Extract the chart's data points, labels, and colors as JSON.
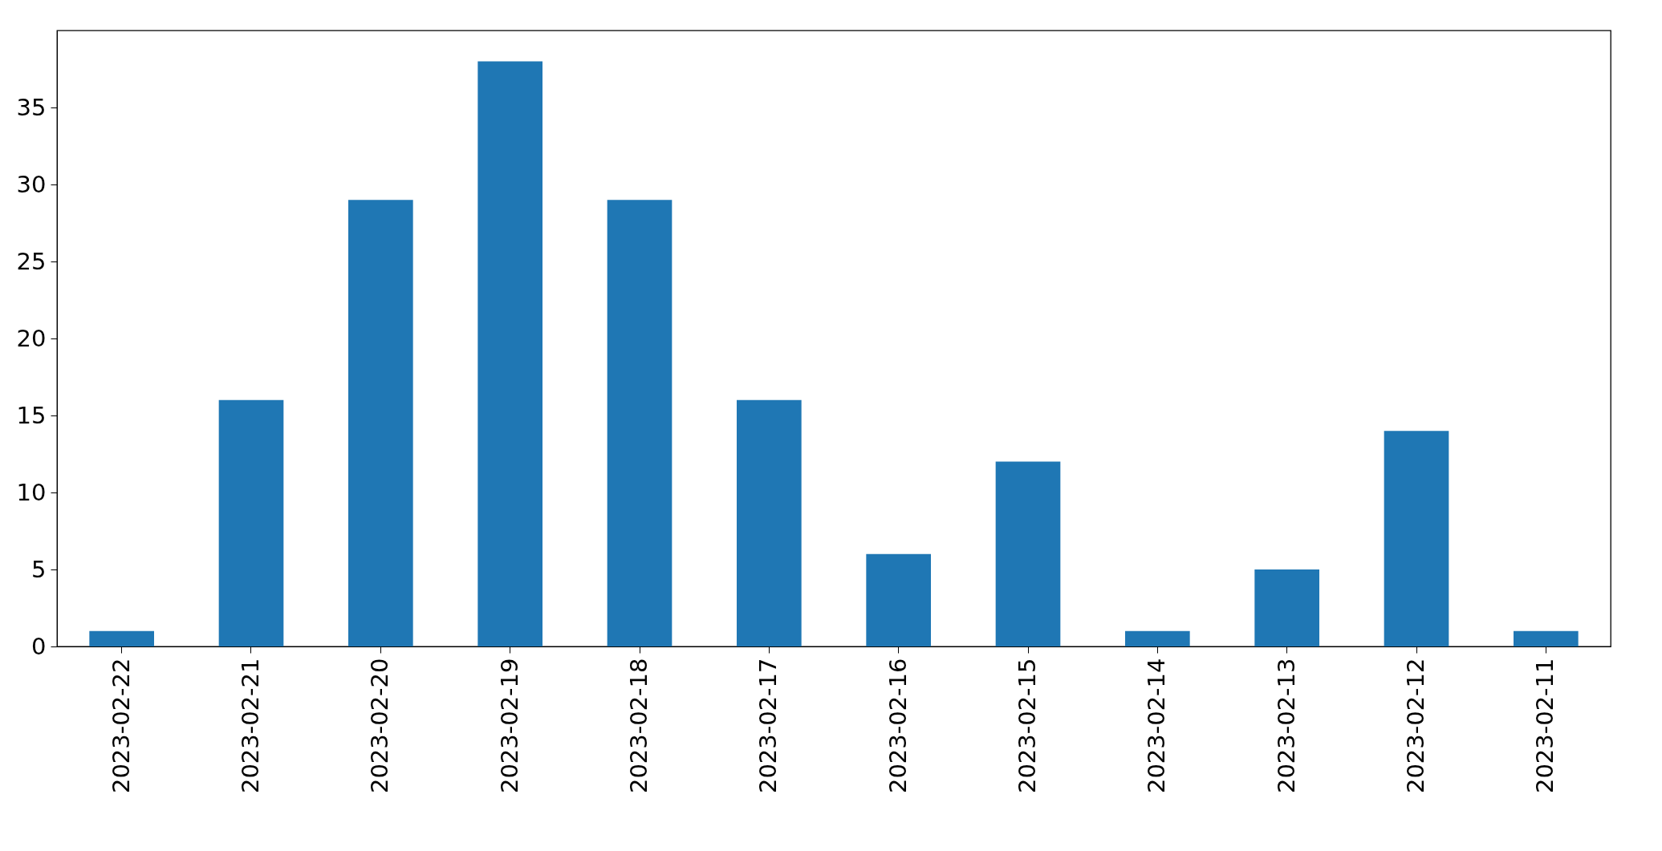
{
  "chart_data": {
    "type": "bar",
    "categories": [
      "2023-02-22",
      "2023-02-21",
      "2023-02-20",
      "2023-02-19",
      "2023-02-18",
      "2023-02-17",
      "2023-02-16",
      "2023-02-15",
      "2023-02-14",
      "2023-02-13",
      "2023-02-12",
      "2023-02-11"
    ],
    "values": [
      1,
      16,
      29,
      38,
      29,
      16,
      6,
      12,
      1,
      5,
      14,
      1
    ],
    "color": "#1f77b4",
    "ylim": [
      0,
      40
    ],
    "yticks": [
      0,
      5,
      10,
      15,
      20,
      25,
      30,
      35
    ],
    "grid": false
  }
}
